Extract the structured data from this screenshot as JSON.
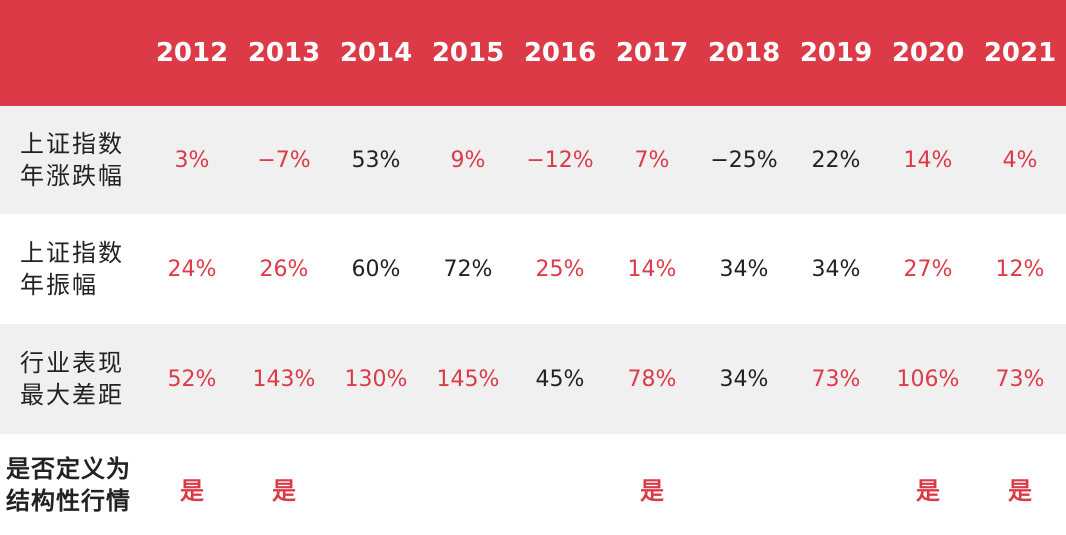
{
  "years": [
    "2012",
    "2013",
    "2014",
    "2015",
    "2016",
    "2017",
    "2018",
    "2019",
    "2020",
    "2021"
  ],
  "rows": [
    {
      "label": "上证指数\n年涨跌幅",
      "values": [
        "3%",
        "−7%",
        "53%",
        "9%",
        "−12%",
        "7%",
        "−25%",
        "22%",
        "14%",
        "4%"
      ],
      "colors": [
        "red",
        "red",
        "dark",
        "red",
        "red",
        "red",
        "dark",
        "dark",
        "red",
        "red"
      ]
    },
    {
      "label": "上证指数\n年振幅",
      "values": [
        "24%",
        "26%",
        "60%",
        "72%",
        "25%",
        "14%",
        "34%",
        "34%",
        "27%",
        "12%"
      ],
      "colors": [
        "red",
        "red",
        "dark",
        "dark",
        "red",
        "red",
        "dark",
        "dark",
        "red",
        "red"
      ]
    },
    {
      "label": "行业表现\n最大差距",
      "values": [
        "52%",
        "143%",
        "130%",
        "145%",
        "45%",
        "78%",
        "34%",
        "73%",
        "106%",
        "73%"
      ],
      "colors": [
        "red",
        "red",
        "red",
        "red",
        "dark",
        "red",
        "dark",
        "red",
        "red",
        "red"
      ]
    },
    {
      "label": "是否定义为\n结构性行情",
      "values": [
        "是",
        "是",
        "",
        "",
        "",
        "是",
        "",
        "",
        "是",
        "是"
      ],
      "colors": [
        "red",
        "red",
        "red",
        "red",
        "red",
        "red",
        "red",
        "red",
        "red",
        "red"
      ]
    }
  ],
  "colors": {
    "header_bg": "#dd3a48",
    "accent_red": "#dd3a48",
    "text_dark": "#222222",
    "row_alt_bg": "#f0f0f0"
  }
}
